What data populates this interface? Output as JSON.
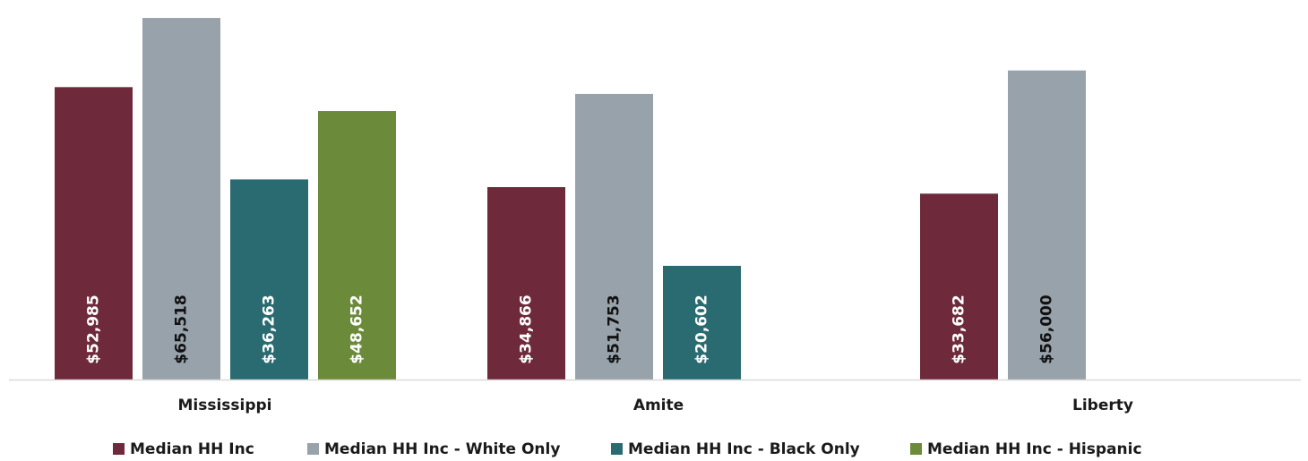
{
  "chart_data": {
    "type": "bar",
    "categories": [
      "Mississippi",
      "Amite",
      "Liberty"
    ],
    "series": [
      {
        "name": "Median HH Inc",
        "color": "#6e2a3b",
        "label_color": "#ffffff",
        "values": [
          52985,
          34866,
          33682
        ],
        "labels": [
          "$52,985",
          "$34,866",
          "$33,682"
        ]
      },
      {
        "name": "Median HH Inc - White Only",
        "color": "#98a2ab",
        "label_color": "#111111",
        "values": [
          65518,
          51753,
          56000
        ],
        "labels": [
          "$65,518",
          "$51,753",
          "$56,000"
        ]
      },
      {
        "name": "Median HH Inc - Black Only",
        "color": "#2a6b72",
        "label_color": "#ffffff",
        "values": [
          36263,
          20602,
          null
        ],
        "labels": [
          "$36,263",
          "$20,602",
          null
        ]
      },
      {
        "name": "Median HH Inc - Hispanic",
        "color": "#6b8a3a",
        "label_color": "#ffffff",
        "values": [
          48652,
          null,
          null
        ],
        "labels": [
          "$48,652",
          null,
          null
        ]
      }
    ],
    "ylim": [
      0,
      66500
    ],
    "grid": false,
    "legend_position": "bottom",
    "axis_line_color": "#d9d9d9"
  }
}
